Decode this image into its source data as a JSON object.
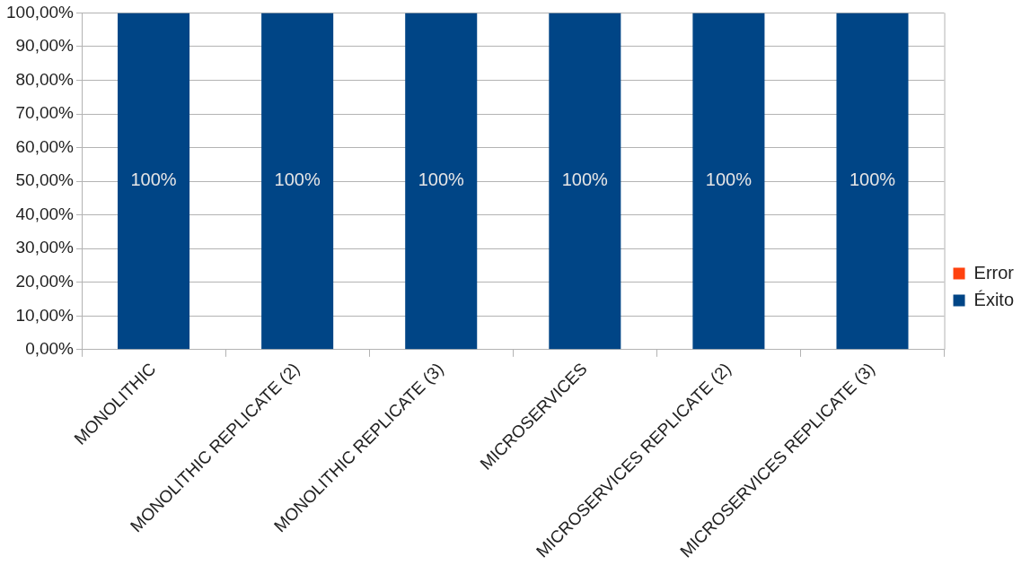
{
  "chart_data": {
    "type": "bar",
    "stacked": true,
    "categories": [
      "MONOLITHIC",
      "MONOLITHIC REPLICATE (2)",
      "MONOLITHIC REPLICATE (3)",
      "MICROSERVICES",
      "MICROSERVICES REPLICATE (2)",
      "MICROSERVICES REPLICATE (3)"
    ],
    "series": [
      {
        "name": "Error",
        "color": "#ff420e",
        "values": [
          0,
          0,
          0,
          0,
          0,
          0
        ]
      },
      {
        "name": "Éxito",
        "color": "#004586",
        "values": [
          100,
          100,
          100,
          100,
          100,
          100
        ],
        "value_labels": [
          "100%",
          "100%",
          "100%",
          "100%",
          "100%",
          "100%"
        ]
      }
    ],
    "ylim": [
      0,
      100
    ],
    "yticks": [
      {
        "value": 0,
        "label": "0,00%"
      },
      {
        "value": 10,
        "label": "10,00%"
      },
      {
        "value": 20,
        "label": "20,00%"
      },
      {
        "value": 30,
        "label": "30,00%"
      },
      {
        "value": 40,
        "label": "40,00%"
      },
      {
        "value": 50,
        "label": "50,00%"
      },
      {
        "value": 60,
        "label": "60,00%"
      },
      {
        "value": 70,
        "label": "70,00%"
      },
      {
        "value": 80,
        "label": "80,00%"
      },
      {
        "value": 90,
        "label": "90,00%"
      },
      {
        "value": 100,
        "label": "100,00%"
      }
    ],
    "grid": "y",
    "legend": "right"
  }
}
